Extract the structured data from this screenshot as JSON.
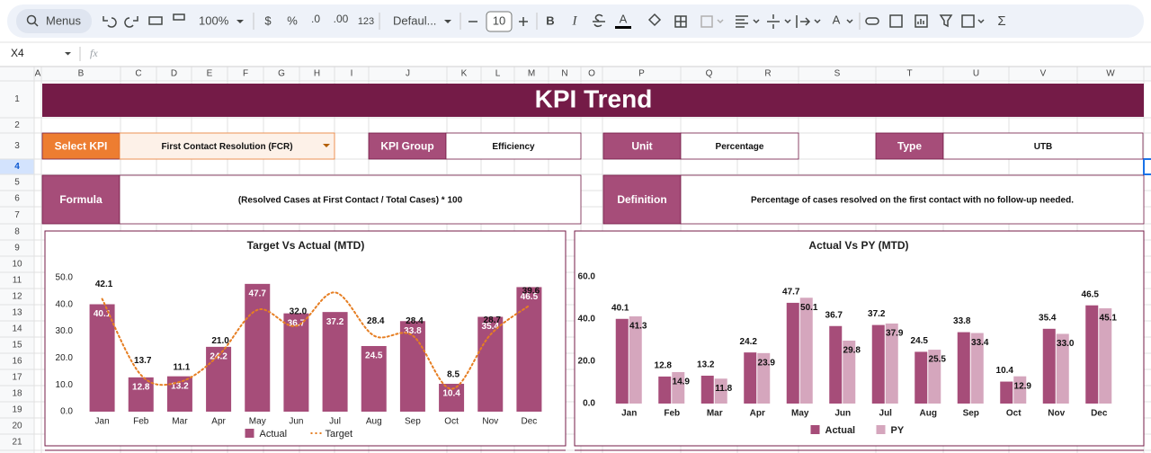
{
  "toolbar": {
    "search": "Menus",
    "zoom": "100%",
    "currency": "$",
    "percent": "%",
    "decrease_decimal": ".0",
    "increase_decimal": ".00",
    "number_format": "123",
    "font": "Defaul...",
    "font_size": "10",
    "bold": "B",
    "italic": "I",
    "text_color": "A",
    "text_rotation": "A",
    "functions": "Σ"
  },
  "formula_bar": {
    "cell": "X4",
    "fx": "fx"
  },
  "columns": [
    "A",
    "B",
    "C",
    "D",
    "E",
    "F",
    "G",
    "H",
    "I",
    "J",
    "K",
    "L",
    "M",
    "N",
    "O",
    "P",
    "Q",
    "R",
    "S",
    "T",
    "U",
    "V",
    "W"
  ],
  "rows": [
    1,
    2,
    3,
    4,
    5,
    6,
    7,
    8,
    9,
    10,
    11,
    12,
    13,
    14,
    15,
    16,
    17,
    18,
    19,
    20,
    21
  ],
  "sheet": {
    "title": "KPI Trend",
    "fields": [
      {
        "label": "Select KPI",
        "value": "First Contact Resolution (FCR)"
      },
      {
        "label": "KPI Group",
        "value": "Efficiency"
      },
      {
        "label": "Unit",
        "value": "Percentage"
      },
      {
        "label": "Type",
        "value": "UTB"
      },
      {
        "label": "Formula",
        "value": "(Resolved Cases at First Contact / Total Cases) * 100"
      },
      {
        "label": "Definition",
        "value": "Percentage of cases resolved on the first contact with no follow-up needed."
      }
    ]
  },
  "chart_data": [
    {
      "type": "bar",
      "title": "Target Vs Actual (MTD)",
      "categories": [
        "Jan",
        "Feb",
        "Mar",
        "Apr",
        "May",
        "Jun",
        "Jul",
        "Aug",
        "Sep",
        "Oct",
        "Nov",
        "Dec"
      ],
      "series": [
        {
          "name": "Actual",
          "color": "#a64d79",
          "values": [
            40.1,
            12.8,
            13.2,
            24.2,
            47.7,
            36.7,
            37.2,
            24.5,
            33.8,
            10.4,
            35.4,
            46.5
          ]
        },
        {
          "name": "Target",
          "type": "line",
          "color": "#e67e22",
          "values": [
            42.1,
            13.7,
            11.1,
            21.0,
            38.0,
            32.0,
            44.5,
            28.4,
            28.4,
            8.5,
            28.7,
            39.6
          ],
          "value_labels": [
            "42.1",
            "13.7",
            "11.1",
            "21.0",
            null,
            "32.0",
            null,
            "28.4",
            "28.4",
            "8.5",
            "28.7",
            "39.6"
          ]
        }
      ],
      "ylim": [
        0,
        50
      ],
      "yticks": [
        {
          "value": 0,
          "label": "0.0"
        },
        {
          "value": 10,
          "label": "10.0"
        },
        {
          "value": 20,
          "label": "20.0"
        },
        {
          "value": 30,
          "label": "30.0"
        },
        {
          "value": 40,
          "label": "40.0"
        },
        {
          "value": 50,
          "label": "50.0"
        }
      ],
      "legend": "bottom"
    },
    {
      "type": "bar",
      "title": "Actual Vs PY (MTD)",
      "categories": [
        "Jan",
        "Feb",
        "Mar",
        "Apr",
        "May",
        "Jun",
        "Jul",
        "Aug",
        "Sep",
        "Oct",
        "Nov",
        "Dec"
      ],
      "series": [
        {
          "name": "Actual",
          "color": "#a64d79",
          "values": [
            40.1,
            12.8,
            13.2,
            24.2,
            47.7,
            36.7,
            37.2,
            24.5,
            33.8,
            10.4,
            35.4,
            46.5
          ]
        },
        {
          "name": "PY",
          "color": "#d5a6bd",
          "values": [
            41.3,
            14.9,
            11.8,
            23.9,
            50.1,
            29.8,
            37.9,
            25.5,
            33.4,
            12.9,
            33.0,
            45.1
          ],
          "value_labels": [
            "41.3",
            "14.9",
            "11.8",
            "23.9",
            "50.1",
            "29.8",
            "37.9",
            "25.5",
            "33.4",
            "12.9",
            "33.0",
            "45.1"
          ]
        }
      ],
      "ylim": [
        0,
        60
      ],
      "yticks": [
        {
          "value": 0,
          "label": "0.0"
        },
        {
          "value": 20,
          "label": "20.0"
        },
        {
          "value": 40,
          "label": "40.0"
        },
        {
          "value": 60,
          "label": "60.0"
        }
      ],
      "legend": "bottom"
    }
  ]
}
